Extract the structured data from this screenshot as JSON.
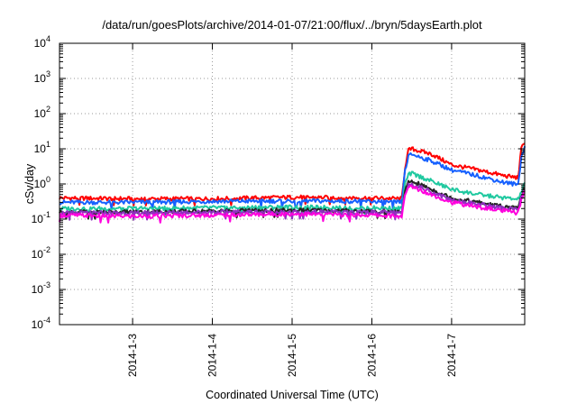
{
  "chart_data": {
    "type": "line",
    "title": "/data/run/goesPlots/archive/2014-01-07/21:00/flux/../bryn/5daysEarth.plot",
    "xlabel": "Coordinated Universal Time (UTC)",
    "ylabel": "cSv/day",
    "yscale": "log",
    "ylim": [
      0.0001,
      10000
    ],
    "y_ticks": [
      {
        "base": "10",
        "exp": "-4",
        "value": 0.0001
      },
      {
        "base": "10",
        "exp": "-3",
        "value": 0.001
      },
      {
        "base": "10",
        "exp": "-2",
        "value": 0.01
      },
      {
        "base": "10",
        "exp": "-1",
        "value": 0.1
      },
      {
        "base": "10",
        "exp": "0",
        "value": 1
      },
      {
        "base": "10",
        "exp": "1",
        "value": 10
      },
      {
        "base": "10",
        "exp": "2",
        "value": 100
      },
      {
        "base": "10",
        "exp": "3",
        "value": 1000
      },
      {
        "base": "10",
        "exp": "4",
        "value": 10000
      }
    ],
    "xlim": [
      "2014-01-02 02:00",
      "2014-01-07 22:00"
    ],
    "x_ticks": [
      {
        "label": "2014-1-3",
        "value": "2014-01-03 00:00"
      },
      {
        "label": "2014-1-4",
        "value": "2014-01-04 00:00"
      },
      {
        "label": "2014-1-5",
        "value": "2014-01-05 00:00"
      },
      {
        "label": "2014-1-6",
        "value": "2014-01-06 00:00"
      },
      {
        "label": "2014-1-7",
        "value": "2014-01-07 00:00"
      }
    ],
    "grid": true,
    "legend": "none",
    "series": [
      {
        "color": "#ff0000",
        "values": [
          {
            "x": "2014-01-02 02:00",
            "y": 0.4
          },
          {
            "x": "2014-01-03 00:00",
            "y": 0.38
          },
          {
            "x": "2014-01-04 00:00",
            "y": 0.38
          },
          {
            "x": "2014-01-05 00:00",
            "y": 0.42
          },
          {
            "x": "2014-01-06 00:00",
            "y": 0.4
          },
          {
            "x": "2014-01-06 09:00",
            "y": 0.38
          },
          {
            "x": "2014-01-06 10:00",
            "y": 3.0
          },
          {
            "x": "2014-01-06 11:00",
            "y": 9.0
          },
          {
            "x": "2014-01-06 12:00",
            "y": 10.0
          },
          {
            "x": "2014-01-06 18:00",
            "y": 7.0
          },
          {
            "x": "2014-01-07 00:00",
            "y": 3.5
          },
          {
            "x": "2014-01-07 08:00",
            "y": 2.5
          },
          {
            "x": "2014-01-07 16:00",
            "y": 1.7
          },
          {
            "x": "2014-01-07 20:00",
            "y": 1.5
          },
          {
            "x": "2014-01-07 21:00",
            "y": 10.0
          },
          {
            "x": "2014-01-07 22:00",
            "y": 16.0
          }
        ]
      },
      {
        "color": "#1560ff",
        "values": [
          {
            "x": "2014-01-02 02:00",
            "y": 0.3
          },
          {
            "x": "2014-01-03 00:00",
            "y": 0.3
          },
          {
            "x": "2014-01-04 00:00",
            "y": 0.32
          },
          {
            "x": "2014-01-05 00:00",
            "y": 0.33
          },
          {
            "x": "2014-01-06 00:00",
            "y": 0.32
          },
          {
            "x": "2014-01-06 09:00",
            "y": 0.3
          },
          {
            "x": "2014-01-06 10:00",
            "y": 2.5
          },
          {
            "x": "2014-01-06 11:00",
            "y": 6.0
          },
          {
            "x": "2014-01-06 12:00",
            "y": 7.0
          },
          {
            "x": "2014-01-06 18:00",
            "y": 4.5
          },
          {
            "x": "2014-01-07 00:00",
            "y": 2.5
          },
          {
            "x": "2014-01-07 08:00",
            "y": 1.7
          },
          {
            "x": "2014-01-07 16:00",
            "y": 1.1
          },
          {
            "x": "2014-01-07 20:00",
            "y": 0.95
          },
          {
            "x": "2014-01-07 21:00",
            "y": 6.0
          },
          {
            "x": "2014-01-07 22:00",
            "y": 11.0
          }
        ]
      },
      {
        "color": "#20c9a0",
        "values": [
          {
            "x": "2014-01-02 02:00",
            "y": 0.2
          },
          {
            "x": "2014-01-03 00:00",
            "y": 0.2
          },
          {
            "x": "2014-01-04 00:00",
            "y": 0.21
          },
          {
            "x": "2014-01-05 00:00",
            "y": 0.22
          },
          {
            "x": "2014-01-06 00:00",
            "y": 0.21
          },
          {
            "x": "2014-01-06 09:00",
            "y": 0.2
          },
          {
            "x": "2014-01-06 10:00",
            "y": 1.0
          },
          {
            "x": "2014-01-06 11:00",
            "y": 1.8
          },
          {
            "x": "2014-01-06 12:00",
            "y": 2.0
          },
          {
            "x": "2014-01-06 18:00",
            "y": 1.2
          },
          {
            "x": "2014-01-07 00:00",
            "y": 0.7
          },
          {
            "x": "2014-01-07 08:00",
            "y": 0.5
          },
          {
            "x": "2014-01-07 16:00",
            "y": 0.4
          },
          {
            "x": "2014-01-07 20:00",
            "y": 0.36
          },
          {
            "x": "2014-01-07 21:00",
            "y": 0.6
          },
          {
            "x": "2014-01-07 22:00",
            "y": 1.0
          }
        ]
      },
      {
        "color": "#222222",
        "values": [
          {
            "x": "2014-01-02 02:00",
            "y": 0.16
          },
          {
            "x": "2014-01-03 00:00",
            "y": 0.16
          },
          {
            "x": "2014-01-04 00:00",
            "y": 0.17
          },
          {
            "x": "2014-01-05 00:00",
            "y": 0.18
          },
          {
            "x": "2014-01-06 00:00",
            "y": 0.17
          },
          {
            "x": "2014-01-06 09:00",
            "y": 0.16
          },
          {
            "x": "2014-01-06 10:00",
            "y": 0.6
          },
          {
            "x": "2014-01-06 11:00",
            "y": 1.1
          },
          {
            "x": "2014-01-06 12:00",
            "y": 1.2
          },
          {
            "x": "2014-01-06 18:00",
            "y": 0.7
          },
          {
            "x": "2014-01-07 00:00",
            "y": 0.4
          },
          {
            "x": "2014-01-07 08:00",
            "y": 0.3
          },
          {
            "x": "2014-01-07 16:00",
            "y": 0.22
          },
          {
            "x": "2014-01-07 20:00",
            "y": 0.2
          },
          {
            "x": "2014-01-07 21:00",
            "y": 0.45
          },
          {
            "x": "2014-01-07 22:00",
            "y": 0.8
          }
        ]
      },
      {
        "color": "#9030c0",
        "values": [
          {
            "x": "2014-01-02 02:00",
            "y": 0.15
          },
          {
            "x": "2014-01-03 00:00",
            "y": 0.15
          },
          {
            "x": "2014-01-04 00:00",
            "y": 0.16
          },
          {
            "x": "2014-01-05 00:00",
            "y": 0.16
          },
          {
            "x": "2014-01-06 00:00",
            "y": 0.16
          },
          {
            "x": "2014-01-06 09:00",
            "y": 0.15
          },
          {
            "x": "2014-01-06 10:00",
            "y": 0.55
          },
          {
            "x": "2014-01-06 11:00",
            "y": 0.95
          },
          {
            "x": "2014-01-06 12:00",
            "y": 1.0
          },
          {
            "x": "2014-01-06 18:00",
            "y": 0.6
          },
          {
            "x": "2014-01-07 00:00",
            "y": 0.35
          },
          {
            "x": "2014-01-07 08:00",
            "y": 0.27
          },
          {
            "x": "2014-01-07 16:00",
            "y": 0.2
          },
          {
            "x": "2014-01-07 20:00",
            "y": 0.18
          },
          {
            "x": "2014-01-07 21:00",
            "y": 0.4
          },
          {
            "x": "2014-01-07 22:00",
            "y": 0.7
          }
        ]
      },
      {
        "color": "#ff00dd",
        "values": [
          {
            "x": "2014-01-02 02:00",
            "y": 0.13
          },
          {
            "x": "2014-01-03 00:00",
            "y": 0.12
          },
          {
            "x": "2014-01-04 00:00",
            "y": 0.13
          },
          {
            "x": "2014-01-05 00:00",
            "y": 0.14
          },
          {
            "x": "2014-01-06 00:00",
            "y": 0.13
          },
          {
            "x": "2014-01-06 09:00",
            "y": 0.12
          },
          {
            "x": "2014-01-06 10:00",
            "y": 0.45
          },
          {
            "x": "2014-01-06 11:00",
            "y": 0.8
          },
          {
            "x": "2014-01-06 12:00",
            "y": 0.85
          },
          {
            "x": "2014-01-06 18:00",
            "y": 0.5
          },
          {
            "x": "2014-01-07 00:00",
            "y": 0.3
          },
          {
            "x": "2014-01-07 08:00",
            "y": 0.22
          },
          {
            "x": "2014-01-07 16:00",
            "y": 0.17
          },
          {
            "x": "2014-01-07 20:00",
            "y": 0.15
          },
          {
            "x": "2014-01-07 21:00",
            "y": 0.35
          },
          {
            "x": "2014-01-07 22:00",
            "y": 0.6
          }
        ]
      }
    ]
  }
}
